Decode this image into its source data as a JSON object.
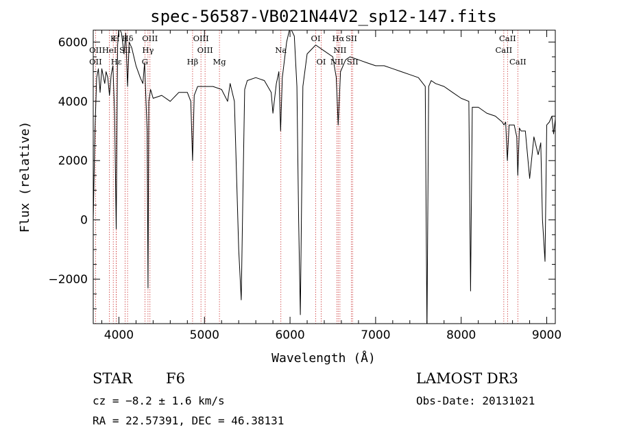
{
  "chart_data": {
    "type": "line",
    "title": "spec-56587-VB021N44V2_sp12-147.fits",
    "xlabel": "Wavelength (Å)",
    "ylabel": "Flux (relative)",
    "xlim": [
      3700,
      9100
    ],
    "ylim": [
      -3500,
      6400
    ],
    "xticks": [
      4000,
      5000,
      6000,
      7000,
      8000,
      9000
    ],
    "yticks": [
      -2000,
      0,
      2000,
      4000,
      6000
    ],
    "xtick_labels": [
      "4000",
      "5000",
      "6000",
      "7000",
      "8000",
      "9000"
    ],
    "ytick_labels": [
      "−2000",
      "0",
      "2000",
      "4000",
      "6000"
    ],
    "series": [
      {
        "name": "flux",
        "x": [
          3700,
          3720,
          3740,
          3760,
          3780,
          3800,
          3820,
          3835,
          3850,
          3870,
          3890,
          3910,
          3930,
          3950,
          3968,
          3985,
          4000,
          4030,
          4060,
          4080,
          4101,
          4120,
          4150,
          4200,
          4250,
          4280,
          4300,
          4330,
          4340,
          4350,
          4370,
          4400,
          4500,
          4600,
          4700,
          4800,
          4840,
          4861,
          4880,
          4920,
          5000,
          5100,
          5200,
          5270,
          5300,
          5350,
          5400,
          5430,
          5450,
          5470,
          5500,
          5600,
          5700,
          5780,
          5800,
          5840,
          5870,
          5890,
          5910,
          5960,
          6000,
          6050,
          6080,
          6100,
          6120,
          6150,
          6200,
          6300,
          6400,
          6500,
          6540,
          6563,
          6590,
          6650,
          6700,
          6800,
          6900,
          7000,
          7100,
          7200,
          7300,
          7400,
          7500,
          7580,
          7600,
          7620,
          7650,
          7700,
          7800,
          7900,
          8000,
          8090,
          8110,
          8130,
          8200,
          8300,
          8400,
          8480,
          8500,
          8520,
          8540,
          8560,
          8620,
          8650,
          8662,
          8680,
          8700,
          8750,
          8800,
          8850,
          8900,
          8930,
          8950,
          8980,
          9000,
          9030,
          9060,
          9080,
          9100
        ],
        "y": [
          0,
          3000,
          4800,
          5100,
          4300,
          5100,
          4800,
          4600,
          5000,
          4800,
          4200,
          4900,
          5200,
          3600,
          -300,
          5900,
          6500,
          6300,
          5600,
          6300,
          4500,
          6000,
          5800,
          5200,
          4800,
          4600,
          5300,
          3000,
          -2300,
          4000,
          4400,
          4100,
          4200,
          4000,
          4300,
          4300,
          4000,
          2000,
          4200,
          4500,
          4500,
          4500,
          4400,
          4000,
          4600,
          4000,
          -1000,
          -2700,
          1000,
          4400,
          4700,
          4800,
          4700,
          4300,
          3600,
          4600,
          5000,
          3000,
          4800,
          6000,
          6500,
          6200,
          4500,
          0,
          -3200,
          4500,
          5600,
          5900,
          5700,
          5500,
          4800,
          3200,
          5000,
          5400,
          5500,
          5400,
          5300,
          5200,
          5200,
          5100,
          5000,
          4900,
          4800,
          4500,
          -3800,
          4500,
          4700,
          4600,
          4500,
          4300,
          4100,
          4000,
          -2400,
          3800,
          3800,
          3600,
          3500,
          3300,
          3200,
          3300,
          2000,
          3200,
          3200,
          2800,
          1500,
          3100,
          3000,
          3000,
          1400,
          2800,
          2200,
          2600,
          0,
          -1400,
          3200,
          3300,
          3500,
          2900,
          3400
        ]
      }
    ],
    "spectral_lines": [
      {
        "label": "Hδ",
        "x": 4101,
        "row": 0
      },
      {
        "label": "K",
        "x": 3934,
        "row": 0
      },
      {
        "label": "H",
        "x": 3969,
        "row": 0
      },
      {
        "label": "OIII",
        "x": 4363,
        "row": 0
      },
      {
        "label": "OIII",
        "x": 4959,
        "row": 0
      },
      {
        "label": "OI",
        "x": 6300,
        "row": 0
      },
      {
        "label": "Hα",
        "x": 6563,
        "row": 0
      },
      {
        "label": "SII",
        "x": 6716,
        "row": 0
      },
      {
        "label": "CaII",
        "x": 8542,
        "row": 0
      },
      {
        "label": "OII",
        "x": 3727,
        "row": 1
      },
      {
        "label": "HeI",
        "x": 3889,
        "row": 1
      },
      {
        "label": "SII",
        "x": 4072,
        "row": 1
      },
      {
        "label": "Hγ",
        "x": 4340,
        "row": 1
      },
      {
        "label": "OIII",
        "x": 5007,
        "row": 1
      },
      {
        "label": "Na",
        "x": 5893,
        "row": 1
      },
      {
        "label": "NII",
        "x": 6583,
        "row": 1
      },
      {
        "label": "CaII",
        "x": 8498,
        "row": 1
      },
      {
        "label": "OII",
        "x": 3727,
        "row": 2
      },
      {
        "label": "Hε",
        "x": 3970,
        "row": 2
      },
      {
        "label": "G",
        "x": 4304,
        "row": 2
      },
      {
        "label": "Hβ",
        "x": 4861,
        "row": 2
      },
      {
        "label": "Mg",
        "x": 5175,
        "row": 2
      },
      {
        "label": "OI",
        "x": 6364,
        "row": 2
      },
      {
        "label": "NII",
        "x": 6548,
        "row": 2
      },
      {
        "label": "SII",
        "x": 6731,
        "row": 2
      },
      {
        "label": "CaII",
        "x": 8662,
        "row": 2
      }
    ]
  },
  "info": {
    "object_type": "STAR",
    "subclass": "F6",
    "redshift_text": "cz = −8.2 ± 1.6 km/s",
    "coords_text": "RA =  22.57391, DEC =  46.38131",
    "survey": "LAMOST DR3",
    "obs_date": "Obs-Date: 20131021"
  },
  "colors": {
    "spectrum": "#000000",
    "line_marker": "#cc3333",
    "axes": "#000000"
  }
}
